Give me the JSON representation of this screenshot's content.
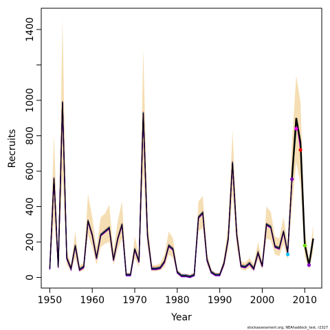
{
  "chart_data": {
    "type": "line",
    "xlabel": "Year",
    "ylabel": "Recruits",
    "xlim": [
      1948,
      2014
    ],
    "ylim": [
      -60,
      1520
    ],
    "x_ticks": [
      1950,
      1960,
      1970,
      1980,
      1990,
      2000,
      2010
    ],
    "y_ticks": [
      0,
      200,
      400,
      600,
      800,
      1000,
      1200,
      1400
    ],
    "y_tick_labels": [
      "0",
      "200",
      "400",
      "600",
      "800",
      "1000",
      "",
      "1400"
    ],
    "footnote": "stockassessment.org, NEAhaddock_test, r2327",
    "colors": {
      "band": "#f5deb3",
      "main": "#000000",
      "retro": [
        "#ff0000",
        "#00bfff",
        "#2e8b57",
        "#ff00ff",
        "#0000cd",
        "#7b00b4"
      ],
      "endpoints": [
        "#00bfff",
        "#7b00b4",
        "#ff00ff",
        "#ff0000",
        "#66dd00",
        "#8a00c8"
      ]
    },
    "years": [
      1950,
      1951,
      1952,
      1953,
      1954,
      1955,
      1956,
      1957,
      1958,
      1959,
      1960,
      1961,
      1962,
      1963,
      1964,
      1965,
      1966,
      1967,
      1968,
      1969,
      1970,
      1971,
      1972,
      1973,
      1974,
      1975,
      1976,
      1977,
      1978,
      1979,
      1980,
      1981,
      1982,
      1983,
      1984,
      1985,
      1986,
      1987,
      1988,
      1989,
      1990,
      1991,
      1992,
      1993,
      1994,
      1995,
      1996,
      1997,
      1998,
      1999,
      2000,
      2001,
      2002,
      2003,
      2004,
      2005,
      2006,
      2007,
      2008,
      2009,
      2010,
      2011,
      2012
    ],
    "recruits": [
      50,
      560,
      60,
      990,
      110,
      50,
      180,
      45,
      60,
      320,
      240,
      110,
      240,
      260,
      280,
      100,
      220,
      300,
      15,
      15,
      160,
      90,
      930,
      240,
      50,
      50,
      55,
      90,
      180,
      160,
      30,
      10,
      10,
      5,
      15,
      340,
      365,
      100,
      30,
      15,
      15,
      80,
      220,
      650,
      240,
      65,
      60,
      80,
      50,
      140,
      65,
      300,
      285,
      175,
      165,
      260,
      140,
      560,
      900,
      760,
      185,
      70,
      220
    ],
    "band_low": [
      40,
      330,
      40,
      580,
      70,
      35,
      110,
      30,
      40,
      240,
      170,
      70,
      170,
      190,
      200,
      70,
      160,
      220,
      10,
      10,
      110,
      60,
      600,
      170,
      35,
      35,
      40,
      60,
      130,
      110,
      20,
      6,
      6,
      3,
      10,
      260,
      280,
      70,
      20,
      10,
      10,
      55,
      160,
      470,
      170,
      45,
      40,
      55,
      35,
      100,
      45,
      220,
      210,
      130,
      120,
      190,
      100,
      400,
      650,
      530,
      120,
      45,
      150
    ],
    "band_high": [
      70,
      810,
      90,
      1460,
      160,
      70,
      260,
      65,
      85,
      470,
      340,
      170,
      340,
      360,
      410,
      150,
      320,
      430,
      25,
      25,
      230,
      130,
      1290,
      340,
      70,
      70,
      80,
      130,
      260,
      220,
      45,
      18,
      18,
      12,
      25,
      430,
      460,
      140,
      45,
      25,
      25,
      110,
      300,
      830,
      310,
      90,
      85,
      110,
      75,
      200,
      90,
      400,
      370,
      230,
      220,
      340,
      190,
      760,
      1140,
      990,
      270,
      100,
      295
    ],
    "retro_series": [
      {
        "end": 2006,
        "end_value": 130
      },
      {
        "end": 2007,
        "end_value": 555
      },
      {
        "end": 2008,
        "end_value": 840
      },
      {
        "end": 2009,
        "end_value": 720
      },
      {
        "end": 2010,
        "end_value": 180
      },
      {
        "end": 2011,
        "end_value": 70
      }
    ]
  }
}
